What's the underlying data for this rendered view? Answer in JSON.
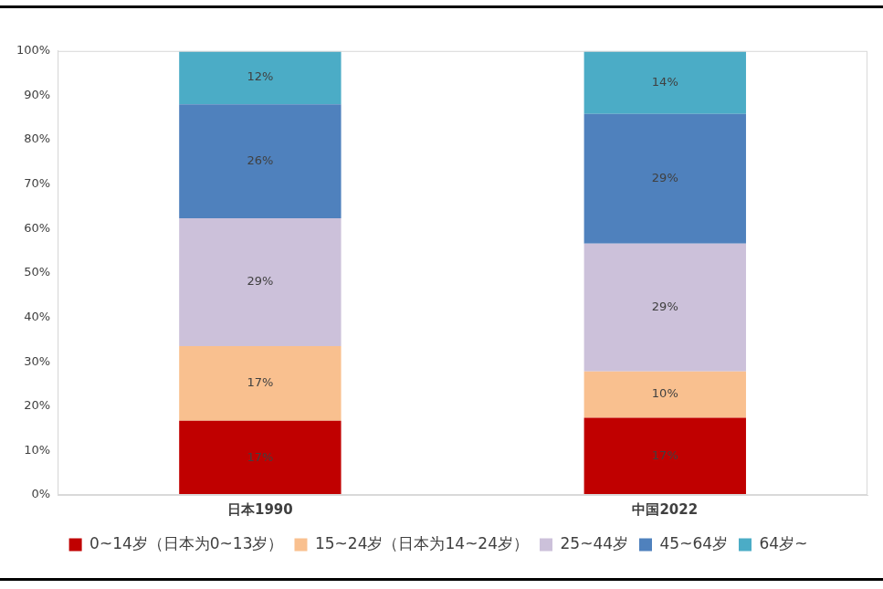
{
  "chart_data": {
    "type": "bar",
    "stacked": true,
    "data_labels": true,
    "grid": false,
    "legend": "bottom",
    "categories": [
      "日本1990",
      "中国2022"
    ],
    "series": [
      {
        "name": "0~14岁（日本为0~13岁）",
        "color": "#c00000",
        "values": [
          16.7,
          17.4
        ],
        "value_labels": [
          "17%",
          "17%"
        ]
      },
      {
        "name": "15~24岁（日本为14~24岁）",
        "color": "#f9c08f",
        "values": [
          16.8,
          10.4
        ],
        "value_labels": [
          "17%",
          "10%"
        ]
      },
      {
        "name": "25~44岁",
        "color": "#ccc1da",
        "values": [
          28.8,
          28.8
        ],
        "value_labels": [
          "29%",
          "29%"
        ]
      },
      {
        "name": "45~64岁",
        "color": "#4f81bd",
        "values": [
          25.7,
          29.2
        ],
        "value_labels": [
          "26%",
          "29%"
        ]
      },
      {
        "name": "64岁~",
        "color": "#4bacc6",
        "values": [
          12.0,
          14.2
        ],
        "value_labels": [
          "12%",
          "14%"
        ]
      }
    ],
    "ylim": [
      0,
      100
    ],
    "yticks": [
      {
        "value": 0,
        "label": "0%"
      },
      {
        "value": 10,
        "label": "10%"
      },
      {
        "value": 20,
        "label": "20%"
      },
      {
        "value": 30,
        "label": "30%"
      },
      {
        "value": 40,
        "label": "40%"
      },
      {
        "value": 50,
        "label": "50%"
      },
      {
        "value": 60,
        "label": "60%"
      },
      {
        "value": 70,
        "label": "70%"
      },
      {
        "value": 80,
        "label": "80%"
      },
      {
        "value": 90,
        "label": "90%"
      },
      {
        "value": 100,
        "label": "100%"
      }
    ]
  }
}
